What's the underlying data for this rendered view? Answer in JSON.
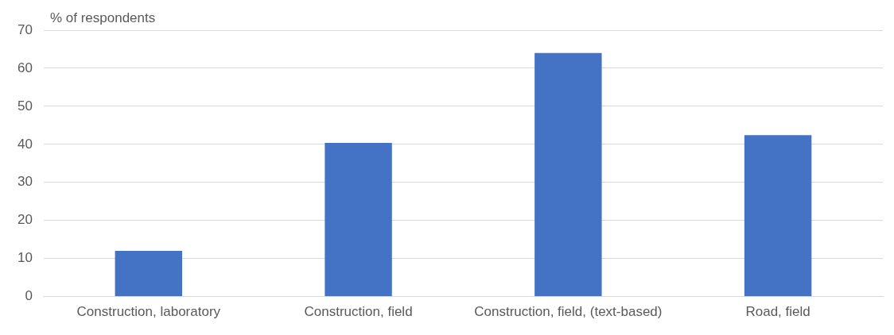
{
  "chart_data": {
    "type": "bar",
    "ylabel": "% of respondents",
    "categories": [
      "Construction, laboratory",
      "Construction, field",
      "Construction, field, (text-based)",
      "Road, field"
    ],
    "values": [
      12,
      40.4,
      64,
      42.4
    ],
    "color": "#4472c4",
    "ylim": [
      0,
      70
    ],
    "yticks": [
      0,
      10,
      20,
      30,
      40,
      50,
      60,
      70
    ],
    "grid": "y"
  }
}
